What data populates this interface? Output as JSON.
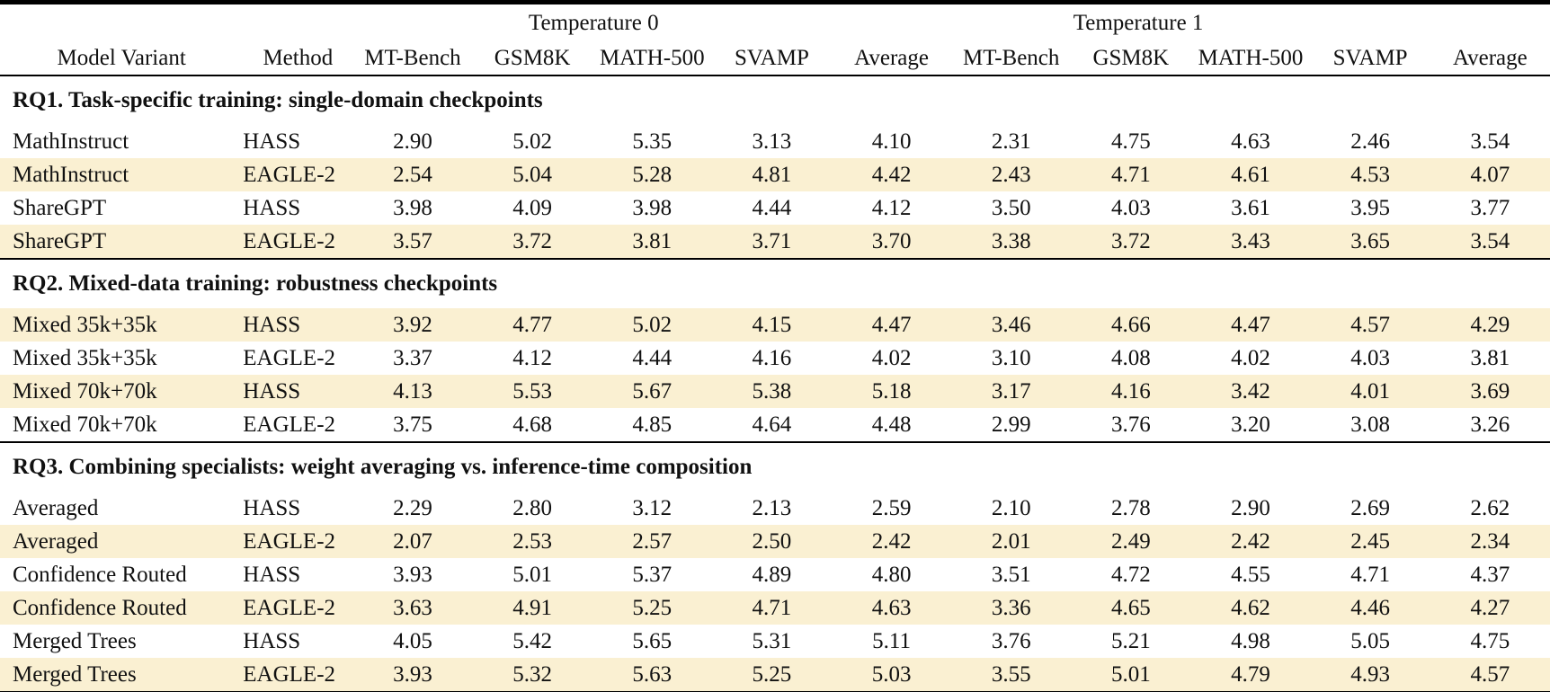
{
  "table": {
    "colors": {
      "highlight": "#faf0d2",
      "text": "#111111",
      "rule": "#000000"
    },
    "col_groups": [
      {
        "label": "",
        "span": 2
      },
      {
        "label": "Temperature 0",
        "span": 5
      },
      {
        "label": "Temperature 1",
        "span": 5
      }
    ],
    "columns": [
      "Model Variant",
      "Method",
      "MT-Bench",
      "GSM8K",
      "MATH-500",
      "SVAMP",
      "Average",
      "MT-Bench",
      "GSM8K",
      "MATH-500",
      "SVAMP",
      "Average"
    ],
    "sections": [
      {
        "title": "RQ1. Task-specific training: single-domain checkpoints",
        "rows": [
          {
            "model": "MathInstruct",
            "method": "HASS",
            "highlight": false,
            "values": [
              "2.90",
              "5.02",
              "5.35",
              "3.13",
              "4.10",
              "2.31",
              "4.75",
              "4.63",
              "2.46",
              "3.54"
            ]
          },
          {
            "model": "MathInstruct",
            "method": "EAGLE-2",
            "highlight": true,
            "values": [
              "2.54",
              "5.04",
              "5.28",
              "4.81",
              "4.42",
              "2.43",
              "4.71",
              "4.61",
              "4.53",
              "4.07"
            ]
          },
          {
            "model": "ShareGPT",
            "method": "HASS",
            "highlight": false,
            "values": [
              "3.98",
              "4.09",
              "3.98",
              "4.44",
              "4.12",
              "3.50",
              "4.03",
              "3.61",
              "3.95",
              "3.77"
            ]
          },
          {
            "model": "ShareGPT",
            "method": "EAGLE-2",
            "highlight": true,
            "values": [
              "3.57",
              "3.72",
              "3.81",
              "3.71",
              "3.70",
              "3.38",
              "3.72",
              "3.43",
              "3.65",
              "3.54"
            ]
          }
        ]
      },
      {
        "title": "RQ2. Mixed-data training: robustness checkpoints",
        "rows": [
          {
            "model": "Mixed 35k+35k",
            "method": "HASS",
            "highlight": true,
            "values": [
              "3.92",
              "4.77",
              "5.02",
              "4.15",
              "4.47",
              "3.46",
              "4.66",
              "4.47",
              "4.57",
              "4.29"
            ]
          },
          {
            "model": "Mixed 35k+35k",
            "method": "EAGLE-2",
            "highlight": false,
            "values": [
              "3.37",
              "4.12",
              "4.44",
              "4.16",
              "4.02",
              "3.10",
              "4.08",
              "4.02",
              "4.03",
              "3.81"
            ]
          },
          {
            "model": "Mixed 70k+70k",
            "method": "HASS",
            "highlight": true,
            "values": [
              "4.13",
              "5.53",
              "5.67",
              "5.38",
              "5.18",
              "3.17",
              "4.16",
              "3.42",
              "4.01",
              "3.69"
            ]
          },
          {
            "model": "Mixed 70k+70k",
            "method": "EAGLE-2",
            "highlight": false,
            "values": [
              "3.75",
              "4.68",
              "4.85",
              "4.64",
              "4.48",
              "2.99",
              "3.76",
              "3.20",
              "3.08",
              "3.26"
            ]
          }
        ]
      },
      {
        "title": "RQ3. Combining specialists: weight averaging vs. inference-time composition",
        "rows": [
          {
            "model": "Averaged",
            "method": "HASS",
            "highlight": false,
            "values": [
              "2.29",
              "2.80",
              "3.12",
              "2.13",
              "2.59",
              "2.10",
              "2.78",
              "2.90",
              "2.69",
              "2.62"
            ]
          },
          {
            "model": "Averaged",
            "method": "EAGLE-2",
            "highlight": true,
            "values": [
              "2.07",
              "2.53",
              "2.57",
              "2.50",
              "2.42",
              "2.01",
              "2.49",
              "2.42",
              "2.45",
              "2.34"
            ]
          },
          {
            "model": "Confidence Routed",
            "method": "HASS",
            "highlight": false,
            "values": [
              "3.93",
              "5.01",
              "5.37",
              "4.89",
              "4.80",
              "3.51",
              "4.72",
              "4.55",
              "4.71",
              "4.37"
            ]
          },
          {
            "model": "Confidence Routed",
            "method": "EAGLE-2",
            "highlight": true,
            "values": [
              "3.63",
              "4.91",
              "5.25",
              "4.71",
              "4.63",
              "3.36",
              "4.65",
              "4.62",
              "4.46",
              "4.27"
            ]
          },
          {
            "model": "Merged Trees",
            "method": "HASS",
            "highlight": false,
            "values": [
              "4.05",
              "5.42",
              "5.65",
              "5.31",
              "5.11",
              "3.76",
              "5.21",
              "4.98",
              "5.05",
              "4.75"
            ]
          },
          {
            "model": "Merged Trees",
            "method": "EAGLE-2",
            "highlight": true,
            "values": [
              "3.93",
              "5.32",
              "5.63",
              "5.25",
              "5.03",
              "3.55",
              "5.01",
              "4.79",
              "4.93",
              "4.57"
            ]
          }
        ]
      }
    ]
  }
}
